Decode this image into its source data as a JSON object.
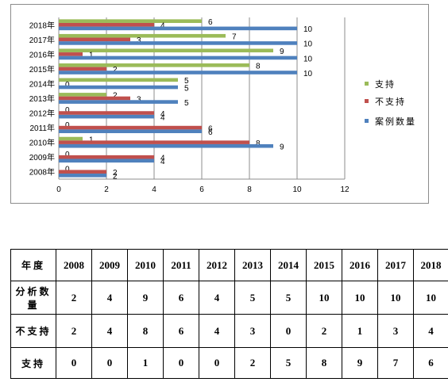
{
  "chart_data": {
    "type": "bar",
    "orientation": "horizontal",
    "categories": [
      "2008年",
      "2009年",
      "2010年",
      "2011年",
      "2012年",
      "2013年",
      "2014年",
      "2015年",
      "2016年",
      "2017年",
      "2018年"
    ],
    "series": [
      {
        "name": "案例数量",
        "color": "#4f81bd",
        "values": [
          2,
          4,
          9,
          6,
          4,
          5,
          5,
          10,
          10,
          10,
          10
        ]
      },
      {
        "name": "不支持",
        "color": "#c0504d",
        "values": [
          2,
          4,
          8,
          6,
          4,
          3,
          0,
          2,
          1,
          3,
          4
        ]
      },
      {
        "name": "支持",
        "color": "#9bbb59",
        "values": [
          0,
          0,
          1,
          0,
          0,
          2,
          5,
          8,
          9,
          7,
          6
        ]
      }
    ],
    "xlim": [
      0,
      12
    ],
    "xticks": [
      "0",
      "2",
      "4",
      "6",
      "8",
      "10",
      "12"
    ],
    "grid": true,
    "legend": "right",
    "legend_order": [
      "支持",
      "不支持",
      "案例数量"
    ]
  },
  "table": {
    "rows": [
      [
        "年度",
        "2008",
        "2009",
        "2010",
        "2011",
        "2012",
        "2013",
        "2014",
        "2015",
        "2016",
        "2017",
        "2018"
      ],
      [
        "分析数量",
        "2",
        "4",
        "9",
        "6",
        "4",
        "5",
        "5",
        "10",
        "10",
        "10",
        "10"
      ],
      [
        "不支持",
        "2",
        "4",
        "8",
        "6",
        "4",
        "3",
        "0",
        "2",
        "1",
        "3",
        "4"
      ],
      [
        "支持",
        "0",
        "0",
        "1",
        "0",
        "0",
        "2",
        "5",
        "8",
        "9",
        "7",
        "6"
      ]
    ]
  }
}
